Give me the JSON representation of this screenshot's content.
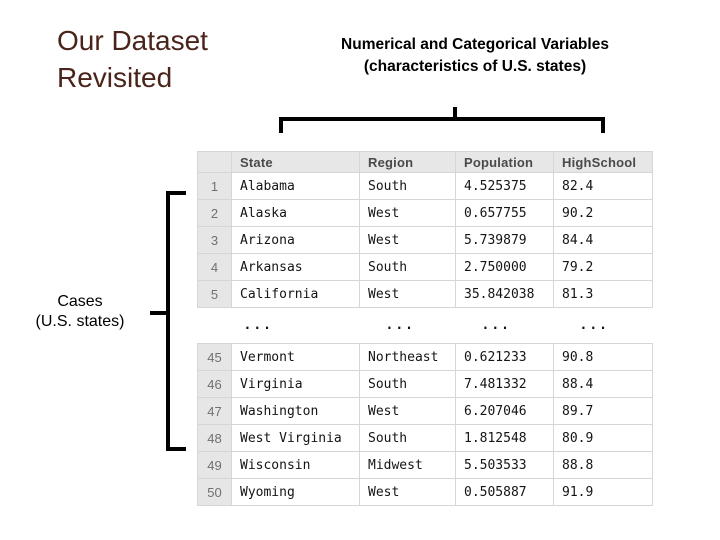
{
  "slide": {
    "title": {
      "line1": "Our Dataset",
      "line2": "Revisited"
    },
    "subtitle": {
      "line1": "Numerical and Categorical Variables",
      "line2": "(characteristics of U.S. states)"
    },
    "cases_label": {
      "line1": "Cases",
      "line2": "(U.S. states)"
    }
  },
  "colors": {
    "title_text": "#4a241a",
    "body_text": "#141414",
    "header_bg": "#e7e7e7",
    "header_text": "#4a4a4a",
    "row_number_bg": "#e6e6e6",
    "row_number_text": "#707070",
    "grid_border": "#d6d6d6",
    "bracket": "#000000",
    "slide_bg": "#ffffff"
  },
  "table": {
    "columns": [
      "State",
      "Region",
      "Population",
      "HighSchool"
    ],
    "rows": [
      {
        "num": "1",
        "cells": [
          "Alabama",
          "South",
          "4.525375",
          "82.4"
        ]
      },
      {
        "num": "2",
        "cells": [
          "Alaska",
          "West",
          "0.657755",
          "90.2"
        ]
      },
      {
        "num": "3",
        "cells": [
          "Arizona",
          "West",
          "5.739879",
          "84.4"
        ]
      },
      {
        "num": "4",
        "cells": [
          "Arkansas",
          "South",
          "2.750000",
          "79.2"
        ]
      },
      {
        "num": "5",
        "cells": [
          "California",
          "West",
          "35.842038",
          "81.3"
        ]
      },
      {
        "num": "",
        "cells": [
          "...",
          "...",
          "...",
          "..."
        ],
        "ellipsis": true
      },
      {
        "num": "45",
        "cells": [
          "Vermont",
          "Northeast",
          "0.621233",
          "90.8"
        ]
      },
      {
        "num": "46",
        "cells": [
          "Virginia",
          "South",
          "7.481332",
          "88.4"
        ]
      },
      {
        "num": "47",
        "cells": [
          "Washington",
          "West",
          "6.207046",
          "89.7"
        ]
      },
      {
        "num": "48",
        "cells": [
          "West Virginia",
          "South",
          "1.812548",
          "80.9"
        ]
      },
      {
        "num": "49",
        "cells": [
          "Wisconsin",
          "Midwest",
          "5.503533",
          "88.8"
        ]
      },
      {
        "num": "50",
        "cells": [
          "Wyoming",
          "West",
          "0.505887",
          "91.9"
        ]
      }
    ]
  }
}
